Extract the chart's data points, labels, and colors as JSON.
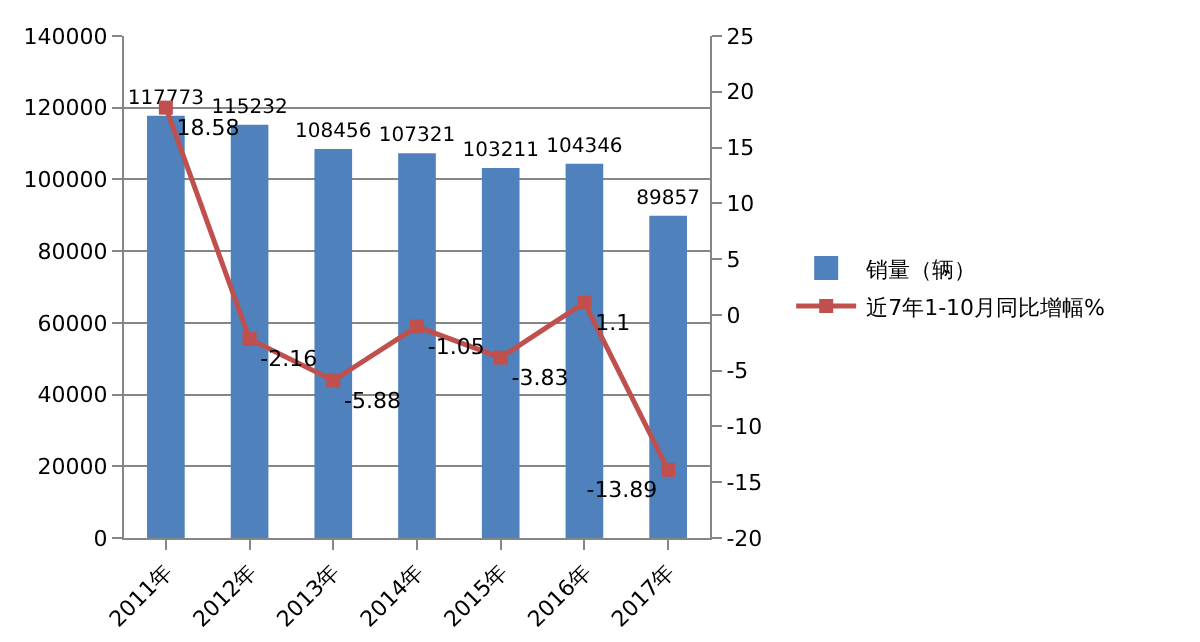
{
  "chart_data": {
    "type": "bar",
    "categories": [
      "2011年",
      "2012年",
      "2013年",
      "2014年",
      "2015年",
      "2016年",
      "2017年"
    ],
    "series": [
      {
        "name": "销量（辆）",
        "color": "#4f81bd",
        "values": [
          117773,
          115232,
          108456,
          107321,
          103211,
          104346,
          89857
        ]
      },
      {
        "name": "近7年1-10月同比增幅%",
        "type": "line",
        "axis": "y2",
        "color": "#c0504d",
        "marker": "square",
        "values": [
          18.58,
          -2.16,
          -5.88,
          -1.05,
          -3.83,
          1.1,
          -13.89
        ]
      }
    ],
    "ylim": [
      0,
      140000
    ],
    "yticks": [
      0,
      20000,
      40000,
      60000,
      80000,
      100000,
      120000,
      140000
    ],
    "y2lim": [
      -20,
      25
    ],
    "y2ticks": [
      -20,
      -15,
      -10,
      -5,
      0,
      5,
      10,
      15,
      20,
      25
    ],
    "grid": "y",
    "legend": "right",
    "data_labels": true
  }
}
